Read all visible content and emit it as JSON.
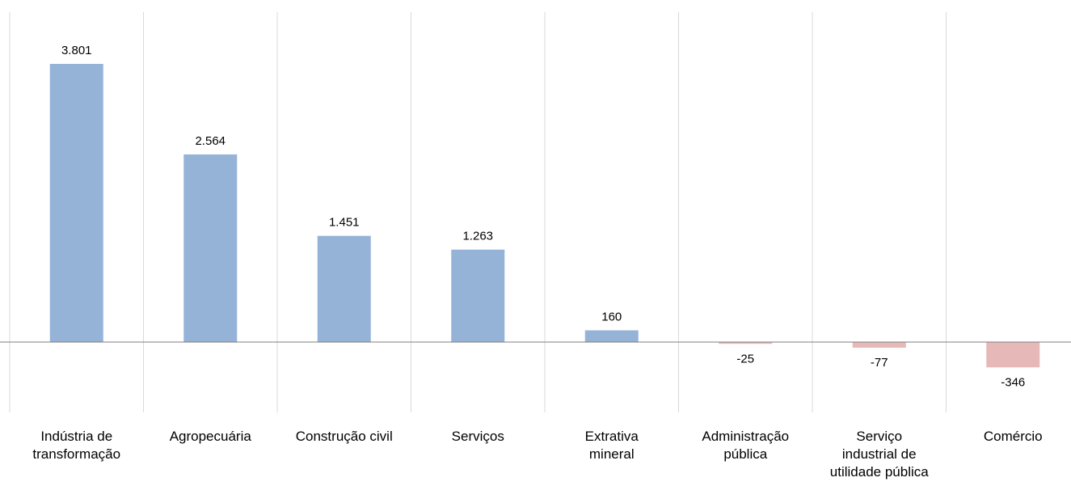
{
  "chart_data": {
    "type": "bar",
    "categories": [
      [
        "Indústria de",
        "transformação"
      ],
      [
        "Agropecuária"
      ],
      [
        "Construção civil"
      ],
      [
        "Serviços"
      ],
      [
        "Extrativa",
        "mineral"
      ],
      [
        "Administração",
        "pública"
      ],
      [
        "Serviço",
        "industrial de",
        "utilidade pública"
      ],
      [
        "Comércio"
      ]
    ],
    "values": [
      3801,
      2564,
      1451,
      1263,
      160,
      -25,
      -77,
      -346
    ],
    "value_labels": [
      "3.801",
      "2.564",
      "1.451",
      "1.263",
      "160",
      "-25",
      "-77",
      "-346"
    ],
    "title": "",
    "xlabel": "",
    "ylabel": "",
    "ylim": [
      -1000,
      4500
    ],
    "grid": "vertical separators",
    "legend": "none",
    "colors": {
      "positive": "#95b3d7",
      "negative": "#e6b9b8",
      "axis": "#7f7f7f",
      "separator": "#d9d9d9"
    }
  }
}
